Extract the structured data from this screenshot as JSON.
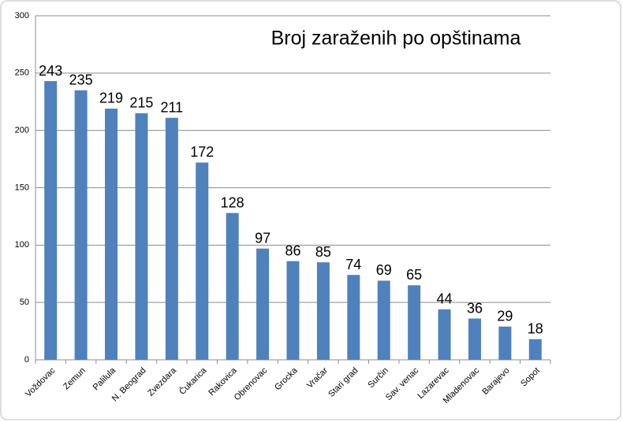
{
  "chart_data": {
    "type": "bar",
    "title": "Broj zaraženih po opštinama",
    "categories": [
      "Voždovac",
      "Zemun",
      "Palilula",
      "N. Beograd",
      "Zvezdara",
      "Čukarica",
      "Rakovica",
      "Obrenovac",
      "Grocka",
      "Vračar",
      "Stari grad",
      "Surčin",
      "Sav. venac",
      "Lazarevac",
      "Mladenovac",
      "Barajevo",
      "Sopot"
    ],
    "values": [
      243,
      235,
      219,
      215,
      211,
      172,
      128,
      97,
      86,
      85,
      74,
      69,
      65,
      44,
      36,
      29,
      18
    ],
    "color": "#4f81bd",
    "ylim": [
      0,
      300
    ],
    "yticks": [
      0,
      50,
      100,
      150,
      200,
      250,
      300
    ],
    "grid": true
  }
}
